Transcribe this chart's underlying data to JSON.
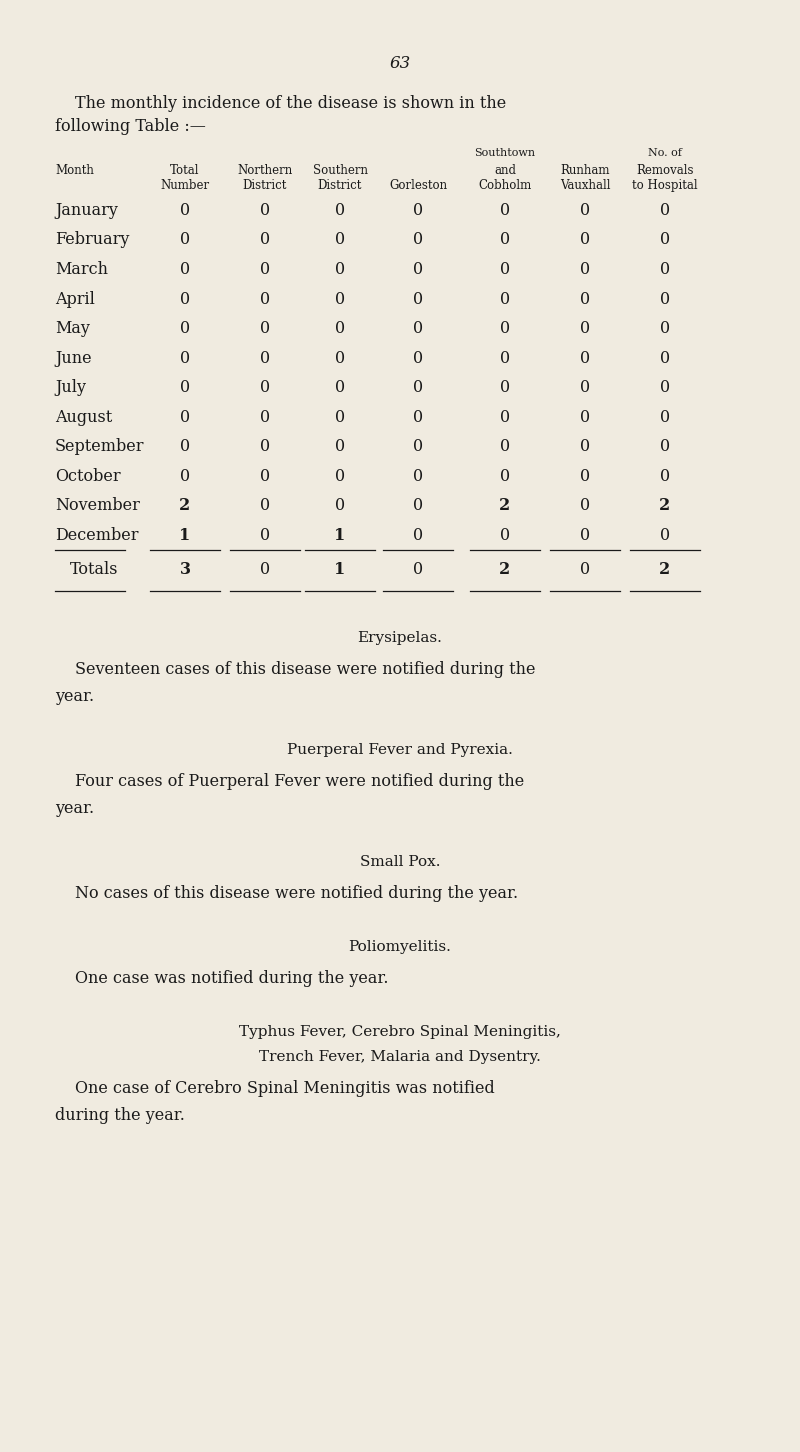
{
  "page_number": "63",
  "bg_color": "#f0ebe0",
  "text_color": "#1a1a1a",
  "page_width": 8.0,
  "page_height": 14.52,
  "months": [
    "January",
    "February",
    "March",
    "April",
    "May",
    "June",
    "July",
    "August",
    "September",
    "October",
    "November",
    "December"
  ],
  "data": [
    [
      0,
      0,
      0,
      0,
      0,
      0,
      0
    ],
    [
      0,
      0,
      0,
      0,
      0,
      0,
      0
    ],
    [
      0,
      0,
      0,
      0,
      0,
      0,
      0
    ],
    [
      0,
      0,
      0,
      0,
      0,
      0,
      0
    ],
    [
      0,
      0,
      0,
      0,
      0,
      0,
      0
    ],
    [
      0,
      0,
      0,
      0,
      0,
      0,
      0
    ],
    [
      0,
      0,
      0,
      0,
      0,
      0,
      0
    ],
    [
      0,
      0,
      0,
      0,
      0,
      0,
      0
    ],
    [
      0,
      0,
      0,
      0,
      0,
      0,
      0
    ],
    [
      0,
      0,
      0,
      0,
      0,
      0,
      0
    ],
    [
      2,
      0,
      0,
      0,
      2,
      0,
      2
    ],
    [
      1,
      0,
      1,
      0,
      0,
      0,
      0
    ]
  ],
  "totals": [
    3,
    0,
    1,
    0,
    2,
    0,
    2
  ],
  "sections": [
    {
      "heading": "Erysipelas.",
      "body": "Seventeen cases of this disease were notified during the\nyear."
    },
    {
      "heading": "Puerperal Fever and Pyrexia.",
      "body": "Four cases of Puerperal Fever were notified during the\nyear."
    },
    {
      "heading": "Small Pox.",
      "body": "No cases of this disease were notified during the year."
    },
    {
      "heading": "Poliomyelitis.",
      "body": "One case was notified during the year."
    },
    {
      "heading": "Typhus Fever, Cerebro Spinal Meningitis,\nTrench Fever, Malaria and Dysentry.",
      "body": "One case of Cerebro Spinal Meningitis was notified\nduring the year."
    }
  ]
}
